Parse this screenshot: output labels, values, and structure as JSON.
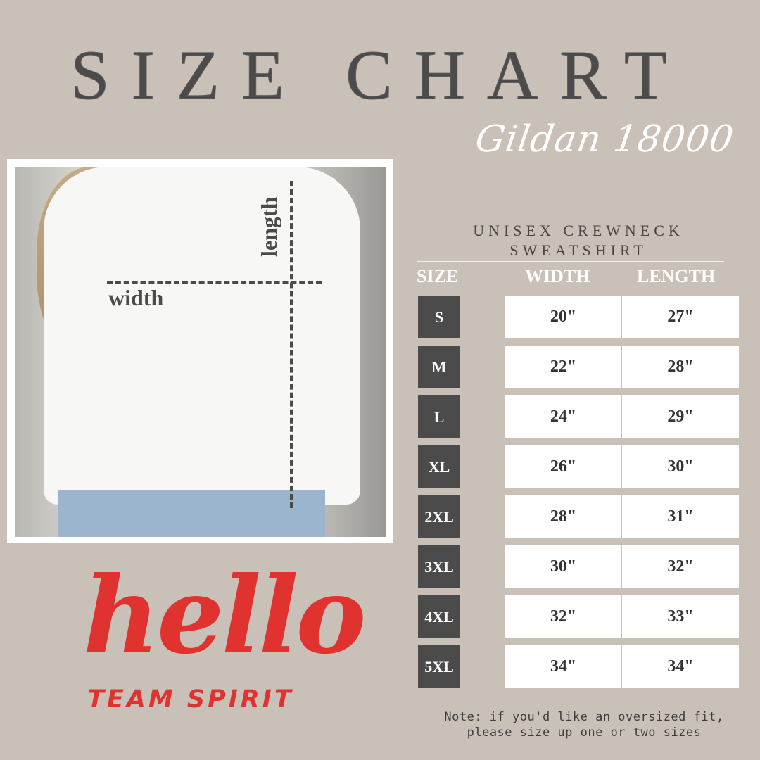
{
  "title": "SIZE CHART",
  "brand": "Gildan 18000",
  "product": {
    "line1": "UNISEX CREWNECK",
    "line2": "SWEATSHIRT"
  },
  "headers": {
    "size": "SIZE",
    "width": "WIDTH",
    "length": "LENGTH"
  },
  "rows": [
    {
      "size": "S",
      "width": "20\"",
      "length": "27\""
    },
    {
      "size": "M",
      "width": "22\"",
      "length": "28\""
    },
    {
      "size": "L",
      "width": "24\"",
      "length": "29\""
    },
    {
      "size": "XL",
      "width": "26\"",
      "length": "30\""
    },
    {
      "size": "2XL",
      "width": "28\"",
      "length": "31\""
    },
    {
      "size": "3XL",
      "width": "30\"",
      "length": "32\""
    },
    {
      "size": "4XL",
      "width": "32\"",
      "length": "33\""
    },
    {
      "size": "5XL",
      "width": "34\"",
      "length": "34\""
    }
  ],
  "photo_labels": {
    "width": "width",
    "length": "length"
  },
  "note": {
    "line1": "Note: if you'd like an oversized fit,",
    "line2": "please size up one or two sizes"
  },
  "logo": {
    "script": "hello",
    "tagline": "TEAM SPIRIT"
  },
  "colors": {
    "background": "#c9c0b8",
    "dark": "#4b4b4b",
    "logo_red": "#e0332f"
  }
}
